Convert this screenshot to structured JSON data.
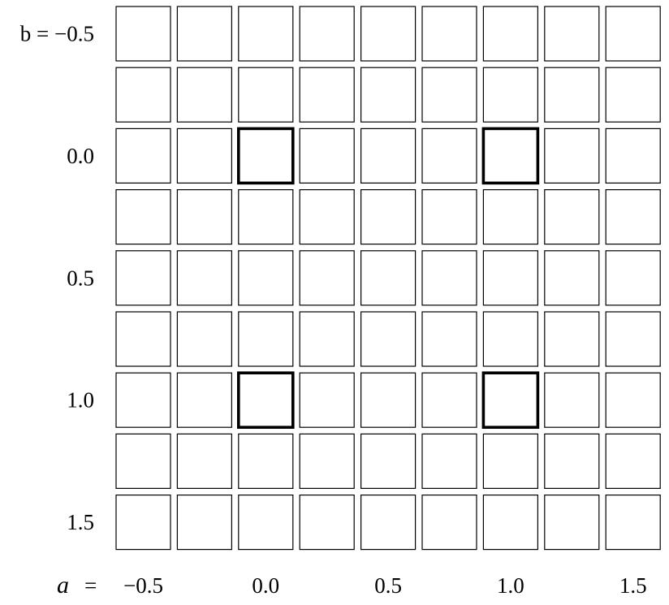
{
  "figure": {
    "grid": {
      "rows": 9,
      "cols": 9,
      "samples_per_cell": 24
    },
    "row_labels": [
      {
        "row": 0,
        "text": "b = −0.5"
      },
      {
        "row": 2,
        "text": "0.0"
      },
      {
        "row": 4,
        "text": "0.5"
      },
      {
        "row": 6,
        "text": "1.0"
      },
      {
        "row": 8,
        "text": "1.5"
      }
    ],
    "col_axis_var": "a",
    "col_axis_eq": "=",
    "col_labels": [
      {
        "col": 0,
        "text": "−0.5"
      },
      {
        "col": 2,
        "text": "0.0"
      },
      {
        "col": 4,
        "text": "0.5"
      },
      {
        "col": 6,
        "text": "1.0"
      },
      {
        "col": 8,
        "text": "1.5"
      }
    ],
    "a_values": [
      -0.5,
      -0.25,
      0.0,
      0.25,
      0.5,
      0.75,
      1.0,
      1.25,
      1.5
    ],
    "b_values": [
      -0.5,
      -0.25,
      0.0,
      0.25,
      0.5,
      0.75,
      1.0,
      1.25,
      1.5
    ],
    "highlighted_cells": [
      {
        "row": 2,
        "col": 2
      },
      {
        "row": 2,
        "col": 6
      },
      {
        "row": 6,
        "col": 2
      },
      {
        "row": 6,
        "col": 6
      }
    ],
    "line_color": "#000000",
    "background": "#ffffff"
  }
}
